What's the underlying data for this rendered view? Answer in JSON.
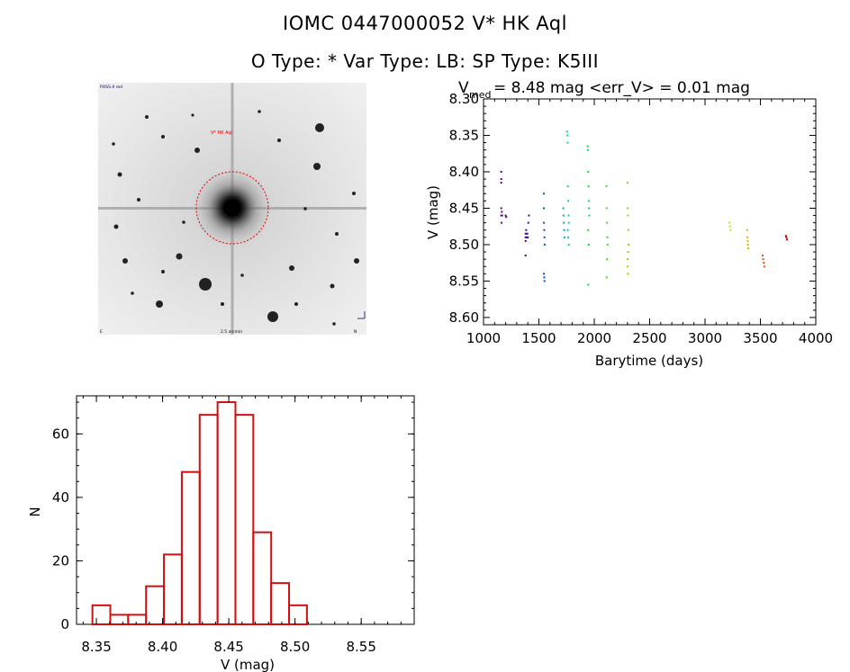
{
  "header": {
    "title_line1": "IOMC 0447000052    V* HK Aql",
    "title_line2": "O Type: *  Var Type: LB:  SP Type: K5III"
  },
  "image_panel": {
    "top_left_label": "POSS-II red",
    "target_label": "V* HK Aql",
    "bottom_center_label": "2.5 arcmin",
    "bottom_left_label": "E",
    "bottom_right_label": "N",
    "marker_color": "#dd0000"
  },
  "chart_data": [
    {
      "type": "scatter",
      "title_prefix": "V",
      "title_sub": "med",
      "title_rest": "= 8.48 mag <err_V> = 0.01 mag",
      "xlabel": "Barytime (days)",
      "ylabel": "V (mag)",
      "xlim": [
        1000,
        4000
      ],
      "ylim": [
        8.3,
        8.61
      ],
      "y_inverted": true,
      "xticks": [
        1000,
        1500,
        2000,
        2500,
        3000,
        3500,
        4000
      ],
      "yticks": [
        8.3,
        8.35,
        8.4,
        8.45,
        8.5,
        8.55,
        8.6
      ],
      "series": [
        {
          "color": "#5a007a",
          "x": [
            1160,
            1160,
            1160,
            1160,
            1160,
            1162,
            1165,
            1168,
            1200,
            1205
          ],
          "y": [
            8.4,
            8.41,
            8.415,
            8.45,
            8.46,
            8.47,
            8.455,
            8.46,
            8.46,
            8.462
          ]
        },
        {
          "color": "#3a00aa",
          "x": [
            1380,
            1380,
            1380,
            1385,
            1390,
            1395,
            1400,
            1405,
            1410,
            1380
          ],
          "y": [
            8.485,
            8.49,
            8.495,
            8.48,
            8.49,
            8.485,
            8.49,
            8.47,
            8.46,
            8.515
          ]
        },
        {
          "color": "#0050d0",
          "x": [
            1545,
            1545,
            1545,
            1548,
            1550,
            1552,
            1545,
            1548,
            1550
          ],
          "y": [
            8.43,
            8.45,
            8.47,
            8.48,
            8.49,
            8.5,
            8.54,
            8.545,
            8.55
          ]
        },
        {
          "color": "#00a0e0",
          "x": [
            1720,
            1722,
            1725,
            1728,
            1730
          ],
          "y": [
            8.45,
            8.46,
            8.47,
            8.48,
            8.49
          ]
        },
        {
          "color": "#00d0b0",
          "x": [
            1755,
            1758,
            1760,
            1762,
            1765,
            1768,
            1770,
            1760,
            1765,
            1770
          ],
          "y": [
            8.345,
            8.35,
            8.36,
            8.42,
            8.44,
            8.46,
            8.47,
            8.48,
            8.49,
            8.5
          ]
        },
        {
          "color": "#00e040",
          "x": [
            1940,
            1942,
            1945,
            1948,
            1950,
            1952,
            1955,
            1945,
            1950,
            1945
          ],
          "y": [
            8.365,
            8.37,
            8.4,
            8.42,
            8.44,
            8.45,
            8.46,
            8.48,
            8.5,
            8.555
          ]
        },
        {
          "color": "#40e000",
          "x": [
            2110,
            2112,
            2115,
            2118,
            2120,
            2115,
            2112
          ],
          "y": [
            8.42,
            8.45,
            8.47,
            8.49,
            8.5,
            8.52,
            8.545
          ]
        },
        {
          "color": "#80e000",
          "x": [
            2300,
            2302,
            2305,
            2308,
            2310,
            2305,
            2302,
            2300,
            2305
          ],
          "y": [
            8.415,
            8.45,
            8.46,
            8.48,
            8.5,
            8.51,
            8.52,
            8.53,
            8.54
          ]
        },
        {
          "color": "#c8e000",
          "x": [
            3220,
            3225,
            3230
          ],
          "y": [
            8.47,
            8.475,
            8.48
          ]
        },
        {
          "color": "#e0b000",
          "x": [
            3380,
            3382,
            3385,
            3388,
            3390
          ],
          "y": [
            8.48,
            8.49,
            8.495,
            8.5,
            8.505
          ]
        },
        {
          "color": "#e05000",
          "x": [
            3520,
            3525,
            3530,
            3535
          ],
          "y": [
            8.515,
            8.52,
            8.525,
            8.53
          ]
        },
        {
          "color": "#c00000",
          "x": [
            3730,
            3735,
            3740
          ],
          "y": [
            8.488,
            8.49,
            8.493
          ]
        }
      ]
    },
    {
      "type": "bar",
      "subtype": "histogram",
      "xlabel": "V (mag)",
      "ylabel": "N",
      "xlim": [
        8.335,
        8.59
      ],
      "ylim": [
        0,
        72
      ],
      "xticks": [
        8.35,
        8.4,
        8.45,
        8.5,
        8.55
      ],
      "xtick_labels": [
        "8.35",
        "8.40",
        "8.45",
        "8.50",
        "8.55"
      ],
      "yticks": [
        0,
        20,
        40,
        60
      ],
      "bin_width": 0.0135,
      "bin_starts": [
        8.347,
        8.3605,
        8.374,
        8.3875,
        8.401,
        8.4145,
        8.428,
        8.4415,
        8.455,
        8.4685,
        8.482,
        8.4955,
        8.509,
        8.5225
      ],
      "values": [
        6,
        3,
        3,
        12,
        22,
        48,
        66,
        70,
        66,
        29,
        13,
        6,
        0,
        0
      ],
      "bar_color": "#d01010"
    }
  ]
}
